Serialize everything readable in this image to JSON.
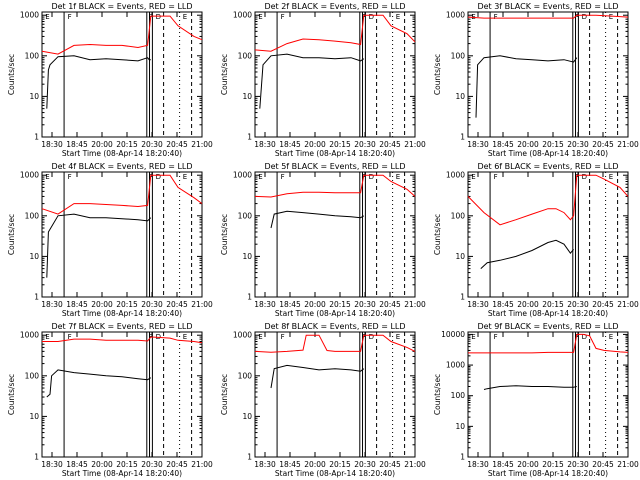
{
  "chart_data": [
    {
      "type": "line",
      "title": "Det 1f BLACK = Events, RED = LLD",
      "xlabel": "Start Time (08-Apr-14 18:20:40)",
      "ylabel": "Counts/sec",
      "x_ticks": [
        "18:30",
        "18:45",
        "20:00",
        "20:15",
        "20:30",
        "20:45",
        "21:00"
      ],
      "y_ticks": [
        "1",
        "10",
        "100",
        "1000"
      ],
      "ylim": [
        1,
        1200
      ],
      "yscale": "log",
      "flare_markers": [
        "E",
        "F",
        "F",
        "D",
        "E"
      ],
      "series": [
        {
          "color": "#000000",
          "x": [
            0.03,
            0.04,
            0.05,
            0.1,
            0.2,
            0.3,
            0.4,
            0.5,
            0.6,
            0.66,
            0.67,
            0.68
          ],
          "y": [
            5,
            45,
            60,
            95,
            100,
            80,
            85,
            80,
            75,
            90,
            80,
            80
          ]
        },
        {
          "color": "#ff0000",
          "x": [
            0.0,
            0.1,
            0.2,
            0.3,
            0.4,
            0.5,
            0.6,
            0.66,
            0.68,
            0.7,
            0.8,
            0.85,
            0.95,
            1.0
          ],
          "y": [
            130,
            110,
            180,
            190,
            180,
            180,
            160,
            180,
            950,
            950,
            950,
            550,
            300,
            250
          ]
        }
      ]
    },
    {
      "type": "line",
      "title": "Det 2f BLACK = Events, RED = LLD",
      "xlabel": "Start Time (08-Apr-14 18:20:40)",
      "ylabel": "Counts/sec",
      "x_ticks": [
        "18:30",
        "18:45",
        "20:00",
        "20:15",
        "20:30",
        "20:45",
        "21:00"
      ],
      "y_ticks": [
        "1",
        "10",
        "100",
        "1000"
      ],
      "ylim": [
        1,
        1200
      ],
      "yscale": "log",
      "flare_markers": [
        "E",
        "F",
        "F",
        "D",
        "E"
      ],
      "series": [
        {
          "color": "#000000",
          "x": [
            0.03,
            0.05,
            0.1,
            0.2,
            0.3,
            0.4,
            0.5,
            0.6,
            0.66,
            0.68
          ],
          "y": [
            5,
            60,
            100,
            110,
            90,
            90,
            85,
            90,
            75,
            85
          ]
        },
        {
          "color": "#ff0000",
          "x": [
            0.0,
            0.1,
            0.2,
            0.3,
            0.4,
            0.5,
            0.6,
            0.66,
            0.68,
            0.7,
            0.8,
            0.85,
            0.95,
            1.0
          ],
          "y": [
            140,
            130,
            200,
            260,
            250,
            230,
            210,
            190,
            1000,
            1000,
            1000,
            550,
            350,
            220
          ]
        }
      ]
    },
    {
      "type": "line",
      "title": "Det 3f BLACK = Events, RED = LLD",
      "xlabel": "Start Time (08-Apr-14 18:20:40)",
      "ylabel": "Counts/sec",
      "x_ticks": [
        "18:30",
        "18:45",
        "20:00",
        "20:15",
        "20:30",
        "20:45",
        "21:00"
      ],
      "y_ticks": [
        "1",
        "10",
        "100",
        "1000"
      ],
      "ylim": [
        1,
        1200
      ],
      "yscale": "log",
      "flare_markers": [
        "E",
        "F",
        "F",
        "D",
        "E"
      ],
      "series": [
        {
          "color": "#000000",
          "x": [
            0.05,
            0.06,
            0.1,
            0.2,
            0.3,
            0.4,
            0.5,
            0.6,
            0.66,
            0.68
          ],
          "y": [
            3,
            60,
            90,
            100,
            85,
            80,
            75,
            80,
            70,
            90
          ]
        },
        {
          "color": "#ff0000",
          "x": [
            0.0,
            0.1,
            0.2,
            0.3,
            0.4,
            0.5,
            0.6,
            0.66,
            0.68,
            0.8,
            0.9,
            1.0
          ],
          "y": [
            900,
            850,
            850,
            850,
            850,
            850,
            850,
            850,
            1000,
            1000,
            950,
            900
          ]
        }
      ]
    },
    {
      "type": "line",
      "title": "Det 4f BLACK = Events, RED = LLD",
      "xlabel": "Start Time (08-Apr-14 18:20:40)",
      "ylabel": "Counts/sec",
      "x_ticks": [
        "18:30",
        "18:45",
        "20:00",
        "20:15",
        "20:30",
        "20:45",
        "21:00"
      ],
      "y_ticks": [
        "1",
        "10",
        "100",
        "1000"
      ],
      "ylim": [
        1,
        1200
      ],
      "yscale": "log",
      "flare_markers": [
        "E",
        "F",
        "F",
        "D",
        "E"
      ],
      "series": [
        {
          "color": "#000000",
          "x": [
            0.03,
            0.04,
            0.1,
            0.2,
            0.3,
            0.4,
            0.5,
            0.6,
            0.66,
            0.68
          ],
          "y": [
            3,
            40,
            100,
            110,
            90,
            90,
            85,
            80,
            75,
            90
          ]
        },
        {
          "color": "#ff0000",
          "x": [
            0.0,
            0.1,
            0.2,
            0.3,
            0.4,
            0.5,
            0.6,
            0.66,
            0.68,
            0.7,
            0.8,
            0.85,
            0.95,
            1.0
          ],
          "y": [
            150,
            110,
            200,
            200,
            190,
            180,
            170,
            180,
            1000,
            1000,
            1000,
            500,
            280,
            200
          ]
        }
      ]
    },
    {
      "type": "line",
      "title": "Det 5f BLACK = Events, RED = LLD",
      "xlabel": "Start Time (08-Apr-14 18:20:40)",
      "ylabel": "Counts/sec",
      "x_ticks": [
        "18:30",
        "18:45",
        "20:00",
        "20:15",
        "20:30",
        "20:45",
        "21:00"
      ],
      "y_ticks": [
        "1",
        "10",
        "100",
        "1000"
      ],
      "ylim": [
        1,
        1200
      ],
      "yscale": "log",
      "flare_markers": [
        "E",
        "F",
        "F",
        "D",
        "E"
      ],
      "series": [
        {
          "color": "#000000",
          "x": [
            0.1,
            0.12,
            0.2,
            0.3,
            0.4,
            0.5,
            0.6,
            0.66,
            0.68
          ],
          "y": [
            50,
            110,
            130,
            120,
            110,
            100,
            95,
            90,
            100
          ]
        },
        {
          "color": "#ff0000",
          "x": [
            0.0,
            0.1,
            0.2,
            0.3,
            0.4,
            0.5,
            0.6,
            0.66,
            0.68,
            0.7,
            0.8,
            0.85,
            0.95,
            1.0
          ],
          "y": [
            300,
            290,
            350,
            380,
            380,
            370,
            370,
            370,
            1000,
            1000,
            1000,
            700,
            450,
            300
          ]
        }
      ]
    },
    {
      "type": "line",
      "title": "Det 6f BLACK = Events, RED = LLD",
      "xlabel": "Start Time (08-Apr-14 18:20:40)",
      "ylabel": "Counts/sec",
      "x_ticks": [
        "18:30",
        "18:45",
        "20:00",
        "20:15",
        "20:30",
        "20:45",
        "21:00"
      ],
      "y_ticks": [
        "1",
        "10",
        "100",
        "1000"
      ],
      "ylim": [
        1,
        1200
      ],
      "yscale": "log",
      "flare_markers": [
        "E",
        "F",
        "F",
        "D",
        "E"
      ],
      "series": [
        {
          "color": "#000000",
          "x": [
            0.08,
            0.12,
            0.2,
            0.3,
            0.4,
            0.5,
            0.55,
            0.6,
            0.64,
            0.66
          ],
          "y": [
            5,
            7,
            8,
            10,
            14,
            22,
            25,
            20,
            12,
            15
          ]
        },
        {
          "color": "#ff0000",
          "x": [
            0.0,
            0.1,
            0.2,
            0.3,
            0.4,
            0.5,
            0.55,
            0.6,
            0.64,
            0.66,
            0.68,
            0.7,
            0.8,
            0.85,
            0.95,
            1.0
          ],
          "y": [
            300,
            120,
            60,
            80,
            110,
            150,
            150,
            120,
            80,
            100,
            1000,
            1000,
            1000,
            800,
            500,
            300
          ]
        }
      ]
    },
    {
      "type": "line",
      "title": "Det 7f BLACK = Events, RED = LLD",
      "xlabel": "Start Time (08-Apr-14 18:20:40)",
      "ylabel": "Counts/sec",
      "x_ticks": [
        "18:30",
        "18:45",
        "20:00",
        "20:15",
        "20:30",
        "20:45",
        "21:00"
      ],
      "y_ticks": [
        "1",
        "10",
        "100",
        "1000"
      ],
      "ylim": [
        1,
        1200
      ],
      "yscale": "log",
      "flare_markers": [
        "E",
        "F",
        "F",
        "D",
        "E"
      ],
      "series": [
        {
          "color": "#000000",
          "x": [
            0.03,
            0.05,
            0.06,
            0.1,
            0.2,
            0.3,
            0.4,
            0.5,
            0.6,
            0.66,
            0.68
          ],
          "y": [
            30,
            35,
            100,
            140,
            120,
            110,
            100,
            95,
            85,
            80,
            90
          ]
        },
        {
          "color": "#ff0000",
          "x": [
            0.0,
            0.1,
            0.2,
            0.3,
            0.4,
            0.5,
            0.6,
            0.66,
            0.68,
            0.7,
            0.8,
            0.85,
            0.95,
            1.0
          ],
          "y": [
            700,
            700,
            800,
            800,
            750,
            750,
            750,
            720,
            900,
            900,
            850,
            750,
            700,
            650
          ]
        }
      ]
    },
    {
      "type": "line",
      "title": "Det 8f BLACK = Events, RED = LLD",
      "xlabel": "Start Time (08-Apr-14 18:20:40)",
      "ylabel": "Counts/sec",
      "x_ticks": [
        "18:30",
        "18:45",
        "20:00",
        "20:15",
        "20:30",
        "20:45",
        "21:00"
      ],
      "y_ticks": [
        "1",
        "10",
        "100",
        "1000"
      ],
      "ylim": [
        1,
        1200
      ],
      "yscale": "log",
      "flare_markers": [
        "E",
        "F",
        "F",
        "D",
        "E"
      ],
      "series": [
        {
          "color": "#000000",
          "x": [
            0.1,
            0.12,
            0.2,
            0.3,
            0.4,
            0.5,
            0.6,
            0.66,
            0.68
          ],
          "y": [
            50,
            150,
            180,
            160,
            140,
            150,
            140,
            130,
            150
          ]
        },
        {
          "color": "#ff0000",
          "x": [
            0.0,
            0.1,
            0.2,
            0.3,
            0.32,
            0.4,
            0.45,
            0.5,
            0.6,
            0.66,
            0.68,
            0.7,
            0.8,
            0.85,
            0.95,
            1.0
          ],
          "y": [
            400,
            380,
            400,
            430,
            1000,
            1000,
            420,
            400,
            400,
            400,
            1000,
            1000,
            1000,
            700,
            500,
            400
          ]
        }
      ]
    },
    {
      "type": "line",
      "title": "Det 9f BLACK = Events, RED = LLD",
      "xlabel": "Start Time (08-Apr-14 18:20:40)",
      "ylabel": "Counts/sec",
      "x_ticks": [
        "18:30",
        "18:45",
        "20:00",
        "20:15",
        "20:30",
        "20:45",
        "21:00"
      ],
      "y_ticks": [
        "1",
        "10",
        "100",
        "1000",
        "10000"
      ],
      "ylim": [
        1,
        12000
      ],
      "yscale": "log",
      "flare_markers": [
        "E",
        "F",
        "F",
        "D",
        "E"
      ],
      "series": [
        {
          "color": "#000000",
          "x": [
            0.1,
            0.12,
            0.2,
            0.3,
            0.4,
            0.5,
            0.6,
            0.66,
            0.68
          ],
          "y": [
            160,
            170,
            200,
            210,
            200,
            200,
            190,
            190,
            200
          ]
        },
        {
          "color": "#ff0000",
          "x": [
            0.0,
            0.1,
            0.2,
            0.3,
            0.4,
            0.5,
            0.6,
            0.66,
            0.68,
            0.72,
            0.76,
            0.8,
            0.85,
            0.95,
            1.0
          ],
          "y": [
            2500,
            2500,
            2500,
            2500,
            2500,
            2600,
            2600,
            2600,
            10000,
            10000,
            9000,
            3500,
            3000,
            2700,
            2600
          ]
        }
      ]
    }
  ]
}
